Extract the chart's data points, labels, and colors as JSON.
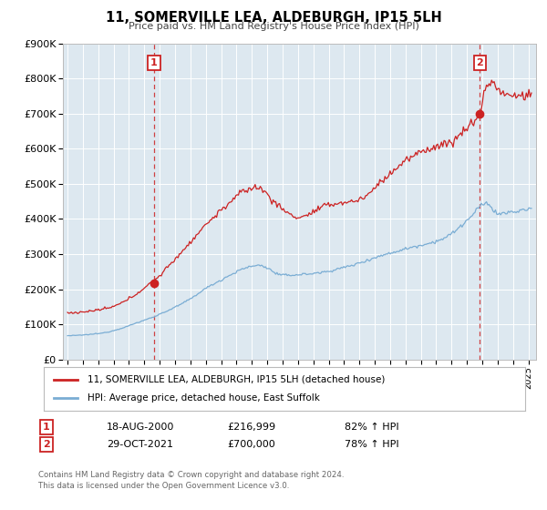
{
  "title": "11, SOMERVILLE LEA, ALDEBURGH, IP15 5LH",
  "subtitle": "Price paid vs. HM Land Registry's House Price Index (HPI)",
  "bg_color": "#ffffff",
  "plot_bg_color": "#dde8f0",
  "red_color": "#cc2222",
  "blue_color": "#7aadd4",
  "red_label": "11, SOMERVILLE LEA, ALDEBURGH, IP15 5LH (detached house)",
  "blue_label": "HPI: Average price, detached house, East Suffolk",
  "ylim": [
    0,
    900000
  ],
  "yticks": [
    0,
    100000,
    200000,
    300000,
    400000,
    500000,
    600000,
    700000,
    800000,
    900000
  ],
  "ytick_labels": [
    "£0",
    "£100K",
    "£200K",
    "£300K",
    "£400K",
    "£500K",
    "£600K",
    "£700K",
    "£800K",
    "£900K"
  ],
  "xmin": 1994.7,
  "xmax": 2025.5,
  "marker1_x": 2000.633,
  "marker1_y": 216999,
  "marker2_x": 2021.831,
  "marker2_y": 700000,
  "ann1_date": "18-AUG-2000",
  "ann1_price": "£216,999",
  "ann1_hpi": "82% ↑ HPI",
  "ann2_date": "29-OCT-2021",
  "ann2_price": "£700,000",
  "ann2_hpi": "78% ↑ HPI",
  "footer1": "Contains HM Land Registry data © Crown copyright and database right 2024.",
  "footer2": "This data is licensed under the Open Government Licence v3.0."
}
